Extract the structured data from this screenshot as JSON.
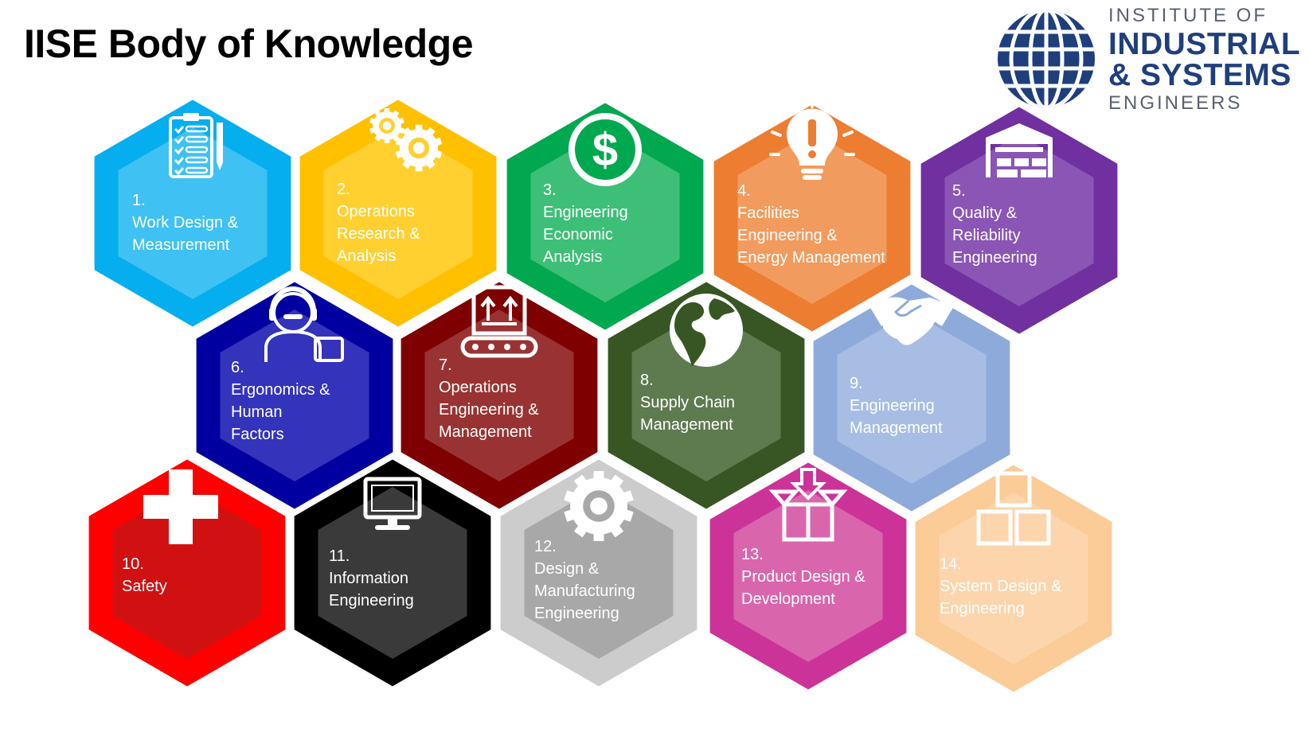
{
  "title": "IISE Body of Knowledge",
  "logo": {
    "line1": "INSTITUTE OF",
    "line2": "INDUSTRIAL",
    "line3": "& SYSTEMS",
    "line4": "ENGINEERS",
    "color": "#1f3f7c"
  },
  "hexagons": [
    {
      "num": "1.",
      "lines": [
        "Work Design &",
        "Measurement"
      ],
      "outer": "#05aeef",
      "inner": "#3fc1f3",
      "icon": "clipboard-checklist-icon"
    },
    {
      "num": "2.",
      "lines": [
        "Operations",
        "Research &",
        "Analysis"
      ],
      "outer": "#ffc000",
      "inner": "#ffd030",
      "icon": "gears-icon"
    },
    {
      "num": "3.",
      "lines": [
        "Engineering",
        "Economic",
        "Analysis"
      ],
      "outer": "#00a84f",
      "inner": "#3dbf78",
      "icon": "dollar-coin-icon"
    },
    {
      "num": "4.",
      "lines": [
        "Facilities",
        "Engineering &",
        "Energy Management"
      ],
      "outer": "#ed7d31",
      "inner": "#f29b5e",
      "icon": "lightbulb-icon"
    },
    {
      "num": "5.",
      "lines": [
        "Quality &",
        "Reliability",
        "Engineering"
      ],
      "outer": "#7030a0",
      "inner": "#8a55b5",
      "icon": "warehouse-icon"
    },
    {
      "num": "6.",
      "lines": [
        "Ergonomics &",
        "Human",
        "Factors"
      ],
      "outer": "#0000a0",
      "inner": "#3333bb",
      "icon": "operator-headset-icon"
    },
    {
      "num": "7.",
      "lines": [
        "Operations",
        "Engineering &",
        "Management"
      ],
      "outer": "#7f0000",
      "inner": "#993333",
      "icon": "conveyor-box-icon"
    },
    {
      "num": "8.",
      "lines": [
        "Supply Chain",
        "Management"
      ],
      "outer": "#375623",
      "inner": "#5e7a4f",
      "icon": "globe-icon"
    },
    {
      "num": "9.",
      "lines": [
        "Engineering",
        "Management"
      ],
      "outer": "#8eaadb",
      "inner": "#a7bde4",
      "icon": "handshake-icon"
    },
    {
      "num": "10.",
      "lines": [
        "Safety"
      ],
      "outer": "#ff0000",
      "inner": "#d11111",
      "icon": "medical-cross-icon"
    },
    {
      "num": "11.",
      "lines": [
        "Information",
        "Engineering"
      ],
      "outer": "#000000",
      "inner": "#3a3a3a",
      "icon": "computer-monitor-icon"
    },
    {
      "num": "12.",
      "lines": [
        "Design &",
        "Manufacturing",
        "Engineering"
      ],
      "outer": "#cccccc",
      "inner": "#a8a8a8",
      "icon": "gear-icon"
    },
    {
      "num": "13.",
      "lines": [
        "Product Design &",
        "Development"
      ],
      "outer": "#cc3399",
      "inner": "#d966ad",
      "icon": "package-arrow-icon"
    },
    {
      "num": "14.",
      "lines": [
        "System Design &",
        "Engineering"
      ],
      "outer": "#fbcb98",
      "inner": "#fcd5ac",
      "icon": "blocks-icon"
    }
  ]
}
